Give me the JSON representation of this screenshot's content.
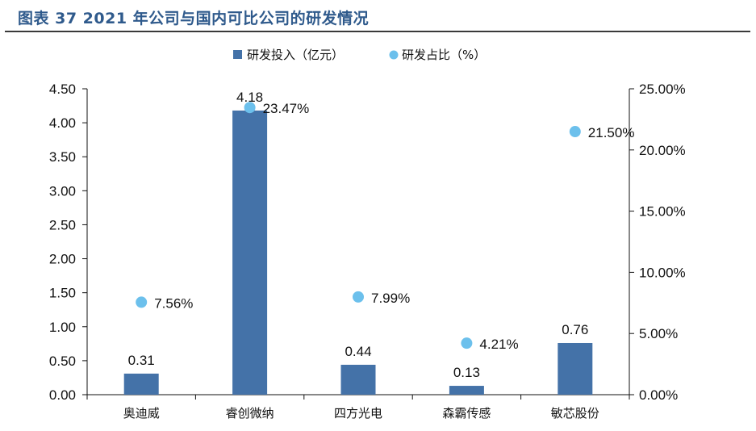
{
  "title": "图表 37 2021 年公司与国内可比公司的研发情况",
  "colors": {
    "title": "#2f5a8c",
    "bar": "#4472a8",
    "dot": "#6cc0ec",
    "axis": "#111111"
  },
  "chart_data": {
    "type": "bar",
    "categories": [
      "奥迪威",
      "睿创微纳",
      "四方光电",
      "森霸传感",
      "敏芯股份"
    ],
    "series": [
      {
        "name": "研发投入（亿元）",
        "type": "bar",
        "axis": "left",
        "values": [
          0.31,
          4.18,
          0.44,
          0.13,
          0.76
        ],
        "labels": [
          "0.31",
          "4.18",
          "0.44",
          "0.13",
          "0.76"
        ]
      },
      {
        "name": "研发占比（%）",
        "type": "scatter",
        "axis": "right",
        "values": [
          7.56,
          23.47,
          7.99,
          4.21,
          21.5
        ],
        "labels": [
          "7.56%",
          "23.47%",
          "7.99%",
          "4.21%",
          "21.50%"
        ]
      }
    ],
    "left_axis": {
      "ylim": [
        0,
        4.5
      ],
      "ticks": [
        "0.00",
        "0.50",
        "1.00",
        "1.50",
        "2.00",
        "2.50",
        "3.00",
        "3.50",
        "4.00",
        "4.50"
      ]
    },
    "right_axis": {
      "ylim": [
        0,
        25
      ],
      "ticks": [
        "0.00%",
        "5.00%",
        "10.00%",
        "15.00%",
        "20.00%",
        "25.00%"
      ]
    },
    "grid": false,
    "legend": "top-center"
  }
}
